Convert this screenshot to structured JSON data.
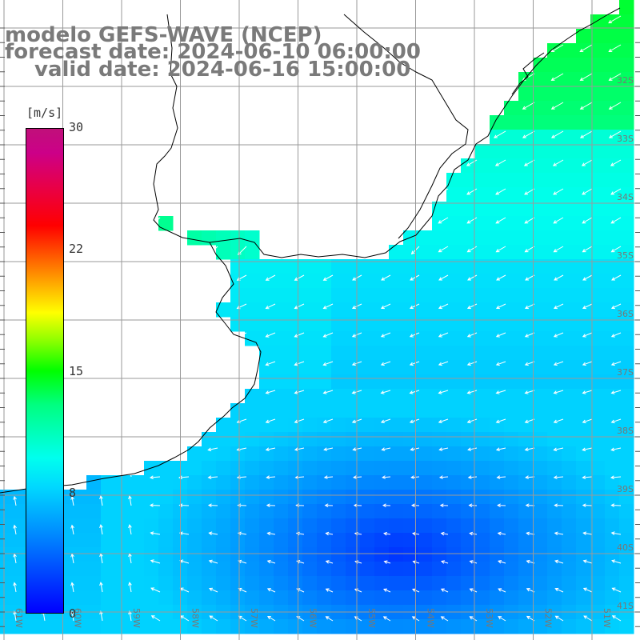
{
  "title": {
    "line1": "modelo GEFS-WAVE (NCEP)",
    "line2": "forecast date: 2024-06-10 06:00:00",
    "line3": "valid date: 2024-06-16 15:00:00"
  },
  "colorbar": {
    "unit": "[m/s]",
    "ticks": [
      "30",
      "22",
      "15",
      "8",
      "0"
    ]
  },
  "axes": {
    "lon_labels": [
      "61W",
      "60W",
      "59W",
      "58W",
      "57W",
      "56W",
      "55W",
      "54W",
      "53W",
      "52W",
      "51W"
    ],
    "lat_labels": [
      "32S",
      "33S",
      "34S",
      "35S",
      "36S",
      "37S",
      "38S",
      "39S",
      "40S",
      "41S"
    ]
  },
  "colors": {
    "land": "#ffffff",
    "grid": "#9a9a9a",
    "coast": "#000000",
    "arrows": "#ffffff",
    "title": "#7a7a7a"
  }
}
